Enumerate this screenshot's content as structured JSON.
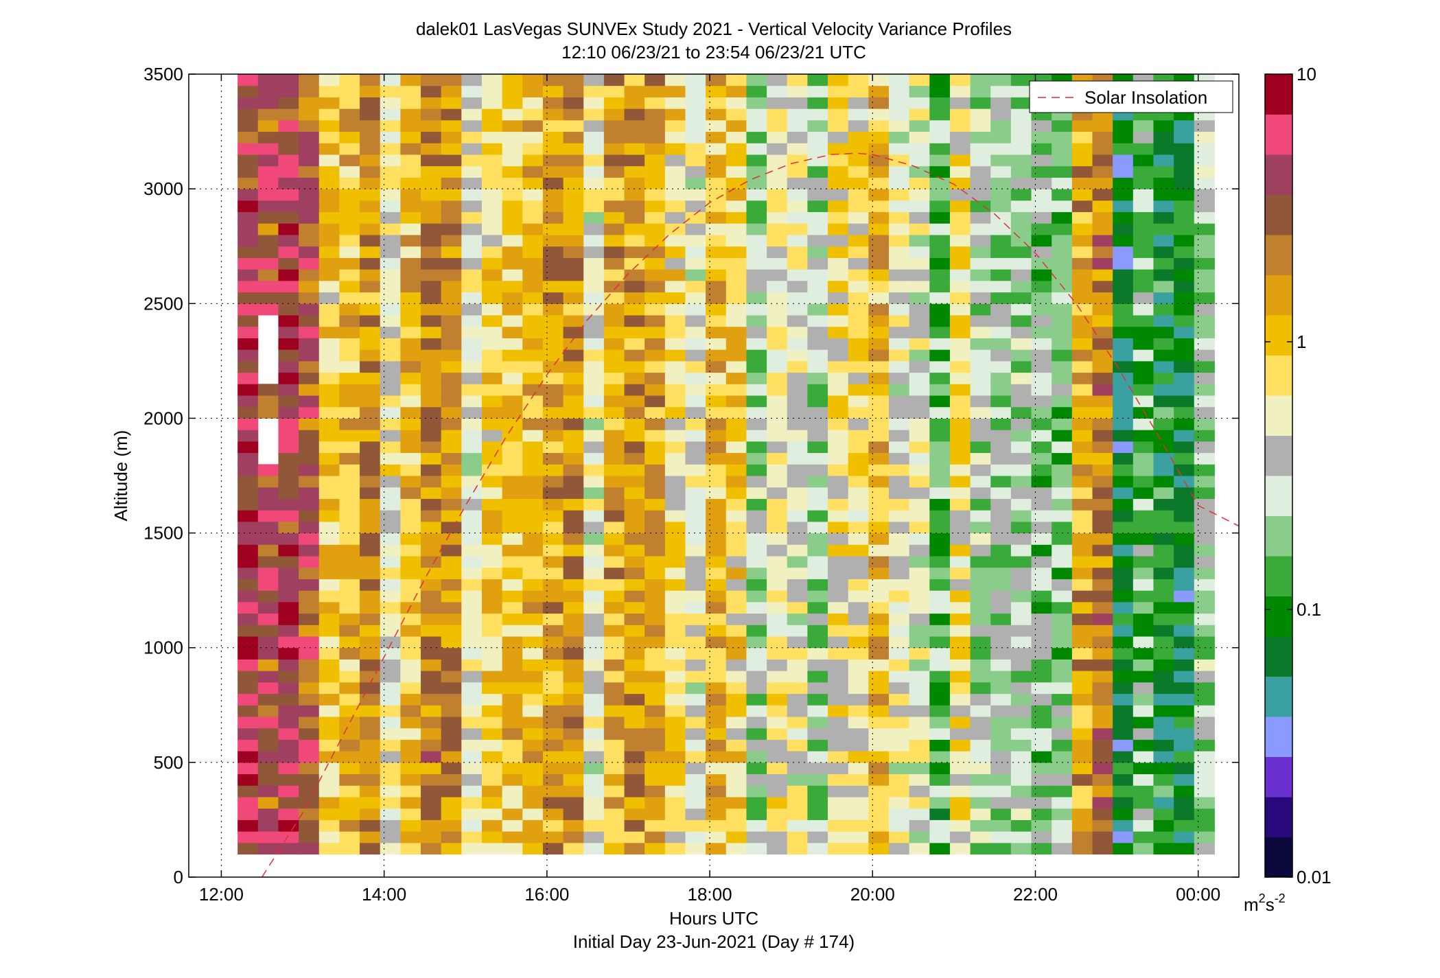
{
  "chart_data": {
    "type": "heatmap",
    "title": "dalek01 LasVegas SUNVEx Study 2021 - Vertical Velocity Variance Profiles",
    "subtitle": "12:10 06/23/21 to 23:54 06/23/21  UTC",
    "xlabel": "Hours UTC",
    "xlabel2": "Initial Day 23-Jun-2021 (Day # 174)",
    "ylabel": "Altitude (m)",
    "x_units": "hours UTC",
    "xlim": [
      11.6,
      24.5
    ],
    "ylim": [
      0,
      3500
    ],
    "x_ticks": [
      12,
      14,
      16,
      18,
      20,
      22,
      24
    ],
    "x_tick_labels": [
      "12:00",
      "14:00",
      "16:00",
      "18:00",
      "20:00",
      "22:00",
      "00:00"
    ],
    "y_ticks": [
      0,
      500,
      1000,
      1500,
      2000,
      2500,
      3000,
      3500
    ],
    "y_tick_labels": [
      "0",
      "500",
      "1000",
      "1500",
      "2000",
      "2500",
      "3000",
      "3500"
    ],
    "grid": true,
    "colorbar": {
      "scale": "log",
      "range": [
        0.01,
        10
      ],
      "ticks": [
        0.01,
        0.1,
        1,
        10
      ],
      "tick_labels": [
        "0.01",
        "0.1",
        "1",
        "10"
      ],
      "units_base": "m",
      "units_sup1": "2",
      "units_mid": "s",
      "units_sup2": "-2",
      "colors": [
        "#0a0a3c",
        "#2a0a7a",
        "#6a30d0",
        "#8a9aff",
        "#3aa0a0",
        "#0a7a2a",
        "#008800",
        "#3aaa3a",
        "#8acc8a",
        "#dfeedf",
        "#b0b0b0",
        "#f0f0c0",
        "#ffe060",
        "#f0c000",
        "#e0a010",
        "#c08030",
        "#905838",
        "#a04060",
        "#f04878",
        "#a00020"
      ]
    },
    "value_range_description": "",
    "legend": {
      "entries": [
        "Solar Insolation"
      ],
      "position": "top-right"
    },
    "solar_insolation": {
      "color": "#e03030",
      "style": "dashed",
      "x": [
        12.5,
        13.0,
        13.5,
        14.0,
        14.5,
        15.0,
        15.5,
        16.0,
        16.5,
        17.0,
        17.5,
        18.0,
        18.5,
        19.0,
        19.5,
        19.8,
        20.0,
        20.5,
        21.0,
        21.5,
        22.0,
        22.5,
        23.0,
        23.5,
        24.0,
        24.5
      ],
      "y": [
        0,
        280,
        620,
        960,
        1300,
        1620,
        1920,
        2190,
        2430,
        2630,
        2800,
        2940,
        3040,
        3110,
        3150,
        3155,
        3150,
        3100,
        3020,
        2890,
        2720,
        2500,
        2230,
        1930,
        1620,
        1530
      ]
    },
    "notes": "Grid of vertical velocity variance values; columns approx every 15 min from 12:12 to 23:54 UTC, rows every ~50 m from 100 to 3500 m."
  }
}
